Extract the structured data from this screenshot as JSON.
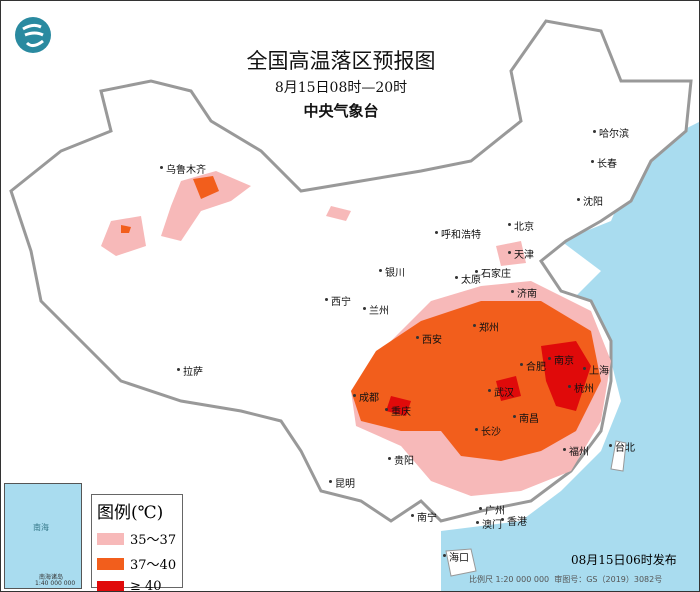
{
  "header": {
    "title": "全国高温落区预报图",
    "time_range": "8月15日08时—20时",
    "issuer": "中央气象台"
  },
  "logo": {
    "icon": "cma-logo-icon",
    "color": "#2a8aa0"
  },
  "legend": {
    "title": "图例(℃)",
    "items": [
      {
        "label": "35～37",
        "color": "#f7b9b9"
      },
      {
        "label": "37～40",
        "color": "#f25e1c"
      },
      {
        "label": "≥ 40",
        "color": "#e00a0a"
      }
    ]
  },
  "footer": {
    "issued": "08月15日06时发布",
    "scale": "比例尺 1:20 000 000",
    "approval": "审图号：GS（2019）3082号"
  },
  "inset": {
    "label": "南海诸岛",
    "scale": "1:40 000 000",
    "sea": "南海"
  },
  "colors": {
    "sea": "#a9dcef",
    "land": "#ffffff",
    "border": "#999999"
  },
  "cities": [
    "乌鲁木齐",
    "哈尔滨",
    "长春",
    "沈阳",
    "北京",
    "天津",
    "呼和浩特",
    "石家庄",
    "太原",
    "济南",
    "银川",
    "兰州",
    "西宁",
    "西安",
    "郑州",
    "合肥",
    "南京",
    "上海",
    "杭州",
    "成都",
    "重庆",
    "武汉",
    "拉萨",
    "南昌",
    "长沙",
    "福州",
    "台北",
    "贵阳",
    "昆明",
    "南宁",
    "广州",
    "香港",
    "澳门",
    "海口"
  ]
}
